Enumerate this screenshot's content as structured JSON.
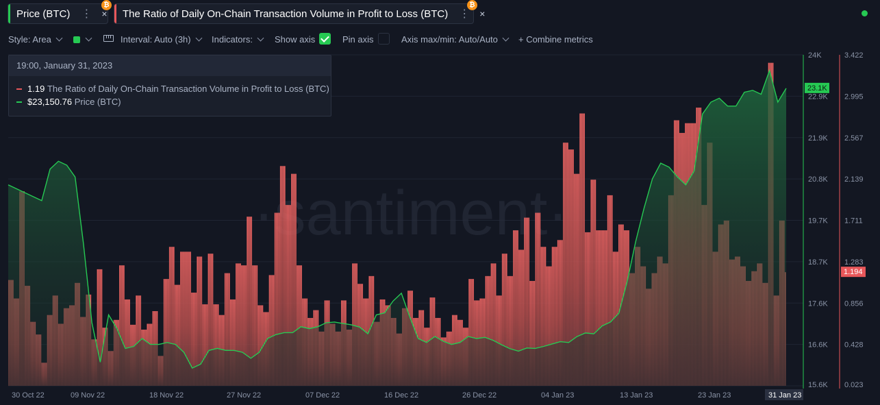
{
  "tabs": [
    {
      "label": "Price (BTC)",
      "accent": "#26c953"
    },
    {
      "label": "The Ratio of Daily On-Chain Transaction Volume in Profit to Loss (BTC)",
      "accent": "#e8575a"
    }
  ],
  "tab_icons": {
    "menu": "⋮",
    "close": "×",
    "coin": "₿"
  },
  "toolbar": {
    "style_label": "Style: Area",
    "interval_label": "Interval: Auto (3h)",
    "indicators_label": "Indicators:",
    "show_axis_label": "Show axis",
    "pin_axis_label": "Pin axis",
    "axis_label": "Axis max/min: Auto/Auto",
    "combine_label": "+ Combine metrics",
    "swatch_color": "#26c953"
  },
  "tooltip": {
    "date": "19:00, January 31, 2023",
    "rows": [
      {
        "value": "1.19",
        "name": "The Ratio of Daily On-Chain Transaction Volume in Profit to Loss (BTC)",
        "color": "#e8575a"
      },
      {
        "value": "$23,150.76",
        "name": "Price (BTC)",
        "color": "#26c953"
      }
    ]
  },
  "watermark": "·santiment·",
  "chart_data": {
    "type": "bar",
    "series": [
      {
        "name": "The Ratio of Daily On-Chain Transaction Volume in Profit to Loss (BTC)",
        "type": "bar",
        "color": "#e8575a",
        "axis": "right",
        "values": [
          1.11,
          1.11,
          1.11,
          1.11,
          0.92,
          0.92,
          0.92,
          0.92,
          2.02,
          2.02,
          2.02,
          2.02,
          1.05,
          1.05,
          1.05,
          1.05,
          0.68,
          0.68,
          0.68,
          0.68,
          0.55,
          0.55,
          0.55,
          0.55,
          0.26,
          0.26,
          0.26,
          0.26,
          0.75,
          0.75,
          0.75,
          0.75,
          0.95,
          0.95,
          0.95,
          0.95,
          0.66,
          0.66,
          0.66,
          0.66,
          0.82,
          0.82,
          0.82,
          0.82,
          0.85,
          0.85,
          0.85,
          0.85,
          1.08,
          1.08,
          1.08,
          1.08,
          0.73,
          0.73,
          0.73,
          0.73,
          0.96,
          0.96,
          0.96,
          0.96,
          0.5,
          0.5,
          0.5,
          0.5,
          1.22,
          1.22,
          1.22,
          1.22,
          0.62,
          0.62,
          0.62,
          0.62,
          0.38,
          0.38,
          0.38,
          0.38,
          0.7,
          0.7,
          0.7,
          0.7,
          1.26,
          1.26,
          1.26,
          1.26,
          0.91,
          0.91,
          0.91,
          0.91,
          0.65,
          0.65,
          0.65,
          0.65,
          0.95,
          0.95,
          0.95,
          0.95,
          0.6,
          0.6,
          0.6,
          0.6,
          0.66,
          0.66,
          0.66,
          0.66,
          0.79,
          0.79,
          0.79,
          0.79,
          0.33,
          0.33,
          0.33,
          0.33,
          1.12,
          1.12,
          1.12,
          1.12,
          1.45,
          1.45,
          1.45,
          1.45,
          1.06,
          1.06,
          1.06,
          1.06,
          1.4,
          1.4,
          1.4,
          1.4,
          1.4,
          1.4,
          1.4,
          1.4,
          0.98,
          0.98,
          0.98,
          0.98,
          1.35,
          1.35,
          1.35,
          1.35,
          0.86,
          0.86,
          0.86,
          0.86,
          1.38,
          1.38,
          1.38,
          1.38,
          0.86,
          0.86,
          0.86,
          0.86,
          0.75,
          0.75,
          0.75,
          0.75,
          1.18,
          1.18,
          1.18,
          1.18,
          0.91,
          0.91,
          0.91,
          0.91,
          1.28,
          1.28,
          1.28,
          1.28,
          1.26,
          1.26,
          1.26,
          1.26,
          1.76,
          1.76,
          1.76,
          1.76,
          1.26,
          1.26,
          1.26,
          1.26,
          0.85,
          0.85,
          0.85,
          0.85,
          0.78,
          0.78,
          0.78,
          0.78,
          1.16,
          1.16,
          1.16,
          1.16,
          1.8,
          1.8,
          1.8,
          1.8,
          2.28,
          2.28,
          2.28,
          2.28,
          1.88,
          1.88,
          1.88,
          1.88,
          2.2,
          2.2,
          2.2,
          2.2,
          1.26,
          1.26,
          1.26,
          1.26,
          0.92,
          0.92,
          0.92,
          0.92,
          0.72,
          0.72,
          0.72,
          0.72,
          0.8,
          0.8,
          0.8,
          0.8,
          0.58,
          0.58,
          0.58,
          0.58,
          0.9,
          0.9,
          0.9,
          0.9,
          0.66,
          0.66,
          0.66,
          0.66,
          0.58,
          0.58,
          0.58,
          0.58,
          0.9,
          0.9,
          0.9,
          0.9,
          0.6,
          0.6,
          0.6,
          0.6,
          1.28,
          1.28,
          1.28,
          1.28,
          1.07,
          1.07,
          1.07,
          1.07,
          0.92,
          0.92,
          0.92,
          0.92,
          1.15,
          1.15,
          1.15,
          1.15,
          0.68,
          0.68,
          0.68,
          0.68,
          0.91,
          0.91,
          0.91,
          0.91,
          0.85,
          0.85,
          0.85,
          0.85,
          0.72,
          0.72,
          0.72,
          0.72,
          0.56,
          0.56,
          0.56,
          0.56,
          0.82,
          0.82,
          0.82,
          0.82,
          1.0,
          1.0,
          1.0,
          1.0,
          0.72,
          0.72,
          0.72,
          0.72,
          0.8,
          0.8,
          0.8,
          0.8,
          0.62,
          0.62,
          0.62,
          0.62,
          0.93,
          0.93,
          0.93,
          0.93,
          0.72,
          0.72,
          0.72,
          0.72,
          0.52,
          0.52,
          0.52,
          0.52,
          0.58,
          0.58,
          0.58,
          0.58,
          0.75,
          0.75,
          0.75,
          0.75,
          0.7,
          0.7,
          0.7,
          0.7,
          0.62,
          0.62,
          0.62,
          0.62,
          1.12,
          1.12,
          1.12,
          1.12,
          0.9,
          0.9,
          0.9,
          0.9,
          0.92,
          0.92,
          0.92,
          0.92,
          1.15,
          1.15,
          1.15,
          1.15,
          1.28,
          1.28,
          1.28,
          1.28,
          0.95,
          0.95,
          0.95,
          0.95,
          1.38,
          1.38,
          1.38,
          1.38,
          1.15,
          1.15,
          1.15,
          1.15,
          1.62,
          1.62,
          1.62,
          1.62,
          1.42,
          1.42,
          1.42,
          1.42,
          1.75,
          1.75,
          1.75,
          1.75,
          1.1,
          1.1,
          1.1,
          1.1,
          1.8,
          1.8,
          1.8,
          1.8,
          1.45,
          1.45,
          1.45,
          1.45,
          1.25,
          1.25,
          1.25,
          1.25,
          1.45,
          1.45,
          1.45,
          1.45,
          1.52,
          1.52,
          1.52,
          1.52,
          2.52,
          2.52,
          2.52,
          2.52,
          2.45,
          2.45,
          2.45,
          2.45,
          2.2,
          2.2,
          2.2,
          2.2,
          2.82,
          2.82,
          2.82,
          2.82,
          1.6,
          1.6,
          1.6,
          1.6,
          2.14,
          2.14,
          2.14,
          2.14,
          1.62,
          1.62,
          1.62,
          1.62,
          1.62,
          1.62,
          1.62,
          1.62,
          1.98,
          1.98,
          1.98,
          1.98,
          1.4,
          1.4,
          1.4,
          1.4,
          1.68,
          1.68,
          1.68,
          1.68,
          1.62,
          1.62,
          1.62,
          1.62,
          1.18,
          1.18,
          1.18,
          1.18,
          1.45,
          1.45,
          1.45,
          1.45,
          1.25,
          1.25,
          1.25,
          1.25,
          1.02,
          1.02,
          1.02,
          1.02,
          1.18,
          1.18,
          1.18,
          1.18,
          1.35,
          1.35,
          1.35,
          1.35,
          1.28,
          1.28,
          1.28,
          1.28,
          1.98,
          1.98,
          1.98,
          1.98,
          2.75,
          2.75,
          2.75,
          2.75,
          2.62,
          2.62,
          2.62,
          2.62,
          2.72,
          2.72,
          2.72,
          2.72,
          2.72,
          2.72,
          2.72,
          2.72,
          2.88,
          2.88,
          2.88,
          2.88,
          1.88,
          1.88,
          1.88,
          1.88,
          2.52,
          2.52,
          2.52,
          2.52,
          1.4,
          1.4,
          1.4,
          1.4,
          1.68,
          1.68,
          1.68,
          1.68,
          1.72,
          1.72,
          1.72,
          1.72,
          1.32,
          1.32,
          1.32,
          1.32,
          1.35,
          1.35,
          1.35,
          1.35,
          1.25,
          1.25,
          1.25,
          1.25,
          1.1,
          1.1,
          1.1,
          1.1,
          1.2,
          1.2,
          1.2,
          1.2,
          1.28,
          1.28,
          1.28,
          1.28,
          1.08,
          1.08,
          1.08,
          1.08,
          3.34,
          3.34,
          3.34,
          3.34,
          0.95,
          0.95,
          0.95,
          0.95,
          1.72,
          1.72,
          1.72,
          1.72,
          1.19
        ]
      },
      {
        "name": "Price (BTC)",
        "type": "area",
        "color": "#26c953",
        "axis": "left",
        "dates": [
          "2022-10-30",
          "2022-10-31",
          "2022-11-01",
          "2022-11-02",
          "2022-11-03",
          "2022-11-04",
          "2022-11-05",
          "2022-11-06",
          "2022-11-07",
          "2022-11-08",
          "2022-11-09",
          "2022-11-10",
          "2022-11-11",
          "2022-11-12",
          "2022-11-13",
          "2022-11-14",
          "2022-11-15",
          "2022-11-16",
          "2022-11-17",
          "2022-11-18",
          "2022-11-19",
          "2022-11-20",
          "2022-11-21",
          "2022-11-22",
          "2022-11-23",
          "2022-11-24",
          "2022-11-25",
          "2022-11-26",
          "2022-11-27",
          "2022-11-28",
          "2022-11-29",
          "2022-11-30",
          "2022-12-01",
          "2022-12-02",
          "2022-12-03",
          "2022-12-04",
          "2022-12-05",
          "2022-12-06",
          "2022-12-07",
          "2022-12-08",
          "2022-12-09",
          "2022-12-10",
          "2022-12-11",
          "2022-12-12",
          "2022-12-13",
          "2022-12-14",
          "2022-12-15",
          "2022-12-16",
          "2022-12-17",
          "2022-12-18",
          "2022-12-19",
          "2022-12-20",
          "2022-12-21",
          "2022-12-22",
          "2022-12-23",
          "2022-12-24",
          "2022-12-25",
          "2022-12-26",
          "2022-12-27",
          "2022-12-28",
          "2022-12-29",
          "2022-12-30",
          "2022-12-31",
          "2023-01-01",
          "2023-01-02",
          "2023-01-03",
          "2023-01-04",
          "2023-01-05",
          "2023-01-06",
          "2023-01-07",
          "2023-01-08",
          "2023-01-09",
          "2023-01-10",
          "2023-01-11",
          "2023-01-12",
          "2023-01-13",
          "2023-01-14",
          "2023-01-15",
          "2023-01-16",
          "2023-01-17",
          "2023-01-18",
          "2023-01-19",
          "2023-01-20",
          "2023-01-21",
          "2023-01-22",
          "2023-01-23",
          "2023-01-24",
          "2023-01-25",
          "2023-01-26",
          "2023-01-27",
          "2023-01-28",
          "2023-01-29",
          "2023-01-30",
          "2023-01-31"
        ],
        "values": [
          20700,
          20600,
          20500,
          20400,
          20300,
          21100,
          21300,
          21200,
          20900,
          19200,
          17200,
          16200,
          17400,
          17050,
          16550,
          16600,
          16800,
          16650,
          16650,
          16700,
          16650,
          16450,
          16050,
          16150,
          16500,
          16550,
          16500,
          16500,
          16450,
          16300,
          16450,
          16800,
          16900,
          16950,
          16950,
          17100,
          17050,
          17100,
          17200,
          17220,
          17180,
          17150,
          17090,
          16920,
          17400,
          17450,
          17750,
          17950,
          17350,
          16800,
          16700,
          16850,
          16730,
          16650,
          16700,
          16850,
          16800,
          16830,
          16750,
          16640,
          16540,
          16480,
          16560,
          16550,
          16600,
          16660,
          16720,
          16700,
          16850,
          16940,
          16920,
          17120,
          17220,
          17440,
          18250,
          19250,
          20100,
          20850,
          21250,
          21150,
          20900,
          20700,
          21050,
          22500,
          22800,
          22900,
          22700,
          22700,
          23050,
          23100,
          23000,
          23600,
          22800,
          23150
        ]
      }
    ],
    "left_axis": {
      "min": 15600,
      "max": 24000,
      "ticks": [
        "24K",
        "22.9K",
        "21.9K",
        "20.8K",
        "19.7K",
        "18.7K",
        "17.6K",
        "16.6K",
        "15.6K"
      ],
      "current": "23.1K"
    },
    "right_axis": {
      "min": 0.023,
      "max": 3.422,
      "ticks": [
        "3.422",
        "2.995",
        "2.567",
        "2.139",
        "1.711",
        "1.283",
        "0.856",
        "0.428",
        "0.023"
      ],
      "current": "1.194"
    },
    "x_ticks": [
      "30 Oct 22",
      "09 Nov 22",
      "18 Nov 22",
      "27 Nov 22",
      "07 Dec 22",
      "16 Dec 22",
      "26 Dec 22",
      "04 Jan 23",
      "13 Jan 23",
      "23 Jan 23"
    ],
    "x_current": "31 Jan 23",
    "xlabel": "",
    "ylabel": "",
    "title": "",
    "grid": true,
    "legend": "top-left tooltip"
  }
}
